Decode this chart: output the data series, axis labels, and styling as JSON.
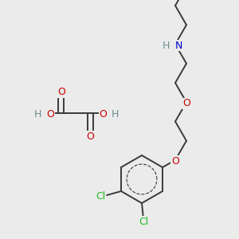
{
  "background_color": "#ebebeb",
  "figsize": [
    3.0,
    3.0
  ],
  "dpi": 100,
  "bond_color": "#3a3a3a",
  "bond_lw": 1.4,
  "atom_colors": {
    "C": "#3a3a3a",
    "H": "#6b8e8e",
    "O": "#cc0000",
    "N": "#0000cc",
    "Cl": "#22bb22"
  },
  "fontsize": 9.0
}
